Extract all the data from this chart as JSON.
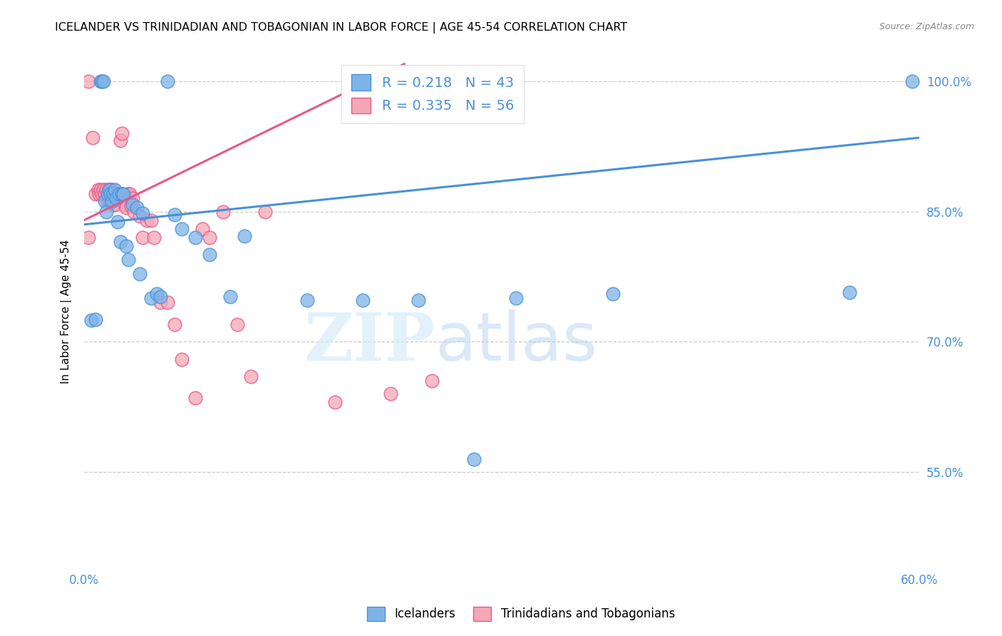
{
  "title": "ICELANDER VS TRINIDADIAN AND TOBAGONIAN IN LABOR FORCE | AGE 45-54 CORRELATION CHART",
  "source": "Source: ZipAtlas.com",
  "ylabel": "In Labor Force | Age 45-54",
  "xlim": [
    0.0,
    0.6
  ],
  "ylim": [
    0.44,
    1.03
  ],
  "xticks": [
    0.0,
    0.1,
    0.2,
    0.3,
    0.4,
    0.5,
    0.6
  ],
  "yticks_right": [
    0.55,
    0.7,
    0.85,
    1.0
  ],
  "ytick_labels_right": [
    "55.0%",
    "70.0%",
    "85.0%",
    "100.0%"
  ],
  "blue_R": "0.218",
  "blue_N": "43",
  "pink_R": "0.335",
  "pink_N": "56",
  "blue_color": "#7EB3E8",
  "pink_color": "#F4A7B5",
  "blue_line_color": "#4A90D9",
  "pink_line_color": "#E8588A",
  "legend_label_blue": "Icelanders",
  "legend_label_pink": "Trinidadians and Tobagonians",
  "watermark_zip": "ZIP",
  "watermark_atlas": "atlas",
  "blue_scatter_x": [
    0.005,
    0.008,
    0.012,
    0.013,
    0.014,
    0.015,
    0.016,
    0.017,
    0.018,
    0.019,
    0.02,
    0.021,
    0.022,
    0.023,
    0.024,
    0.025,
    0.026,
    0.027,
    0.028,
    0.03,
    0.032,
    0.035,
    0.038,
    0.04,
    0.042,
    0.048,
    0.052,
    0.055,
    0.06,
    0.065,
    0.07,
    0.08,
    0.09,
    0.105,
    0.115,
    0.16,
    0.2,
    0.24,
    0.28,
    0.31,
    0.38,
    0.55,
    0.595
  ],
  "blue_scatter_y": [
    0.725,
    0.726,
    1.0,
    1.0,
    1.0,
    0.862,
    0.85,
    0.87,
    0.875,
    0.87,
    0.862,
    0.87,
    0.875,
    0.865,
    0.838,
    0.87,
    0.815,
    0.87,
    0.87,
    0.81,
    0.795,
    0.858,
    0.855,
    0.778,
    0.848,
    0.75,
    0.755,
    0.752,
    1.0,
    0.846,
    0.83,
    0.82,
    0.8,
    0.752,
    0.822,
    0.748,
    0.748,
    0.748,
    0.565,
    0.75,
    0.755,
    0.757,
    1.0
  ],
  "pink_scatter_x": [
    0.003,
    0.006,
    0.008,
    0.01,
    0.011,
    0.012,
    0.013,
    0.014,
    0.015,
    0.016,
    0.017,
    0.017,
    0.018,
    0.018,
    0.019,
    0.019,
    0.02,
    0.02,
    0.021,
    0.022,
    0.022,
    0.023,
    0.024,
    0.025,
    0.026,
    0.026,
    0.027,
    0.028,
    0.029,
    0.03,
    0.031,
    0.032,
    0.033,
    0.034,
    0.035,
    0.036,
    0.04,
    0.042,
    0.045,
    0.048,
    0.05,
    0.055,
    0.06,
    0.065,
    0.07,
    0.08,
    0.085,
    0.09,
    0.1,
    0.11,
    0.12,
    0.13,
    0.18,
    0.22,
    0.25,
    0.003
  ],
  "pink_scatter_y": [
    1.0,
    0.935,
    0.87,
    0.875,
    0.87,
    0.875,
    0.87,
    0.875,
    0.87,
    0.875,
    0.87,
    0.862,
    0.875,
    0.862,
    0.875,
    0.862,
    0.875,
    0.862,
    0.858,
    0.858,
    0.87,
    0.87,
    0.87,
    0.865,
    0.87,
    0.932,
    0.94,
    0.868,
    0.858,
    0.855,
    0.87,
    0.87,
    0.87,
    0.856,
    0.865,
    0.85,
    0.845,
    0.82,
    0.84,
    0.84,
    0.82,
    0.745,
    0.745,
    0.72,
    0.68,
    0.635,
    0.83,
    0.82,
    0.85,
    0.72,
    0.66,
    0.85,
    0.63,
    0.64,
    0.655,
    0.82
  ],
  "blue_trendline_x": [
    0.0,
    0.6
  ],
  "blue_trendline_y": [
    0.835,
    0.935
  ],
  "pink_trendline_x": [
    0.0,
    0.23
  ],
  "pink_trendline_y": [
    0.84,
    1.02
  ]
}
